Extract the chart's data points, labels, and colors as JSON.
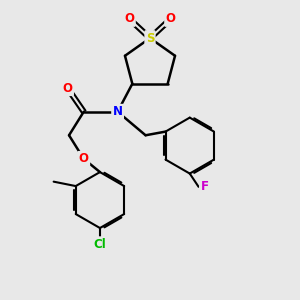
{
  "bg_color": "#e8e8e8",
  "bond_color": "#000000",
  "atom_colors": {
    "O": "#ff0000",
    "N": "#0000ff",
    "S": "#cccc00",
    "Cl": "#00bb00",
    "F": "#cc00cc",
    "C": "#000000"
  }
}
